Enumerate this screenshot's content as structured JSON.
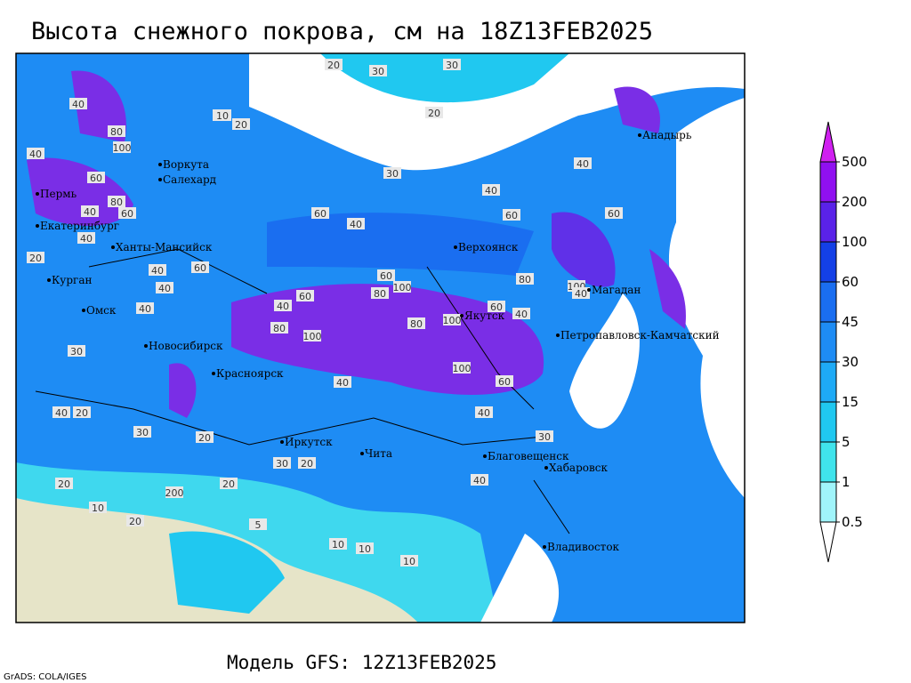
{
  "title": "Высота снежного покрова, см на 18Z13FEB2025",
  "footer": "Модель GFS: 12Z13FEB2025",
  "credit": "GrADS: COLA/IGES",
  "colorbar": {
    "levels": [
      0.5,
      1,
      5,
      15,
      30,
      45,
      60,
      100,
      200,
      500
    ],
    "colors": [
      "#ffffff",
      "#a0f4fa",
      "#40e4ec",
      "#20c8f0",
      "#1eaaf6",
      "#1e8cf4",
      "#1a6ef0",
      "#1440e6",
      "#5a22e8",
      "#9010f0",
      "#d020f0"
    ]
  },
  "cities": [
    "Анадырь",
    "Воркута",
    "Салехард",
    "Пермь",
    "Екатеринбург",
    "Ханты-Мансийск",
    "Верхоянск",
    "Курган",
    "Омск",
    "Магадан",
    "Якутск",
    "Петропавловск-Камчатский",
    "Новосибирск",
    "Красноярск",
    "Иркутск",
    "Чита",
    "Благовещенск",
    "Хабаровск",
    "Владивосток"
  ],
  "contour_labels": [
    20,
    30,
    30,
    20,
    10,
    20,
    40,
    80,
    100,
    40,
    60,
    80,
    60,
    40,
    40,
    40,
    60,
    40,
    20,
    40,
    60,
    40,
    100,
    80,
    60,
    100,
    80,
    100,
    80,
    60,
    40,
    100,
    60,
    40,
    40,
    30,
    20,
    40,
    30,
    20,
    20,
    200,
    20,
    10,
    20,
    10,
    5,
    10,
    10,
    20,
    30,
    40,
    60,
    40,
    30,
    10,
    40,
    60,
    80,
    100,
    40,
    60,
    40,
    30
  ]
}
